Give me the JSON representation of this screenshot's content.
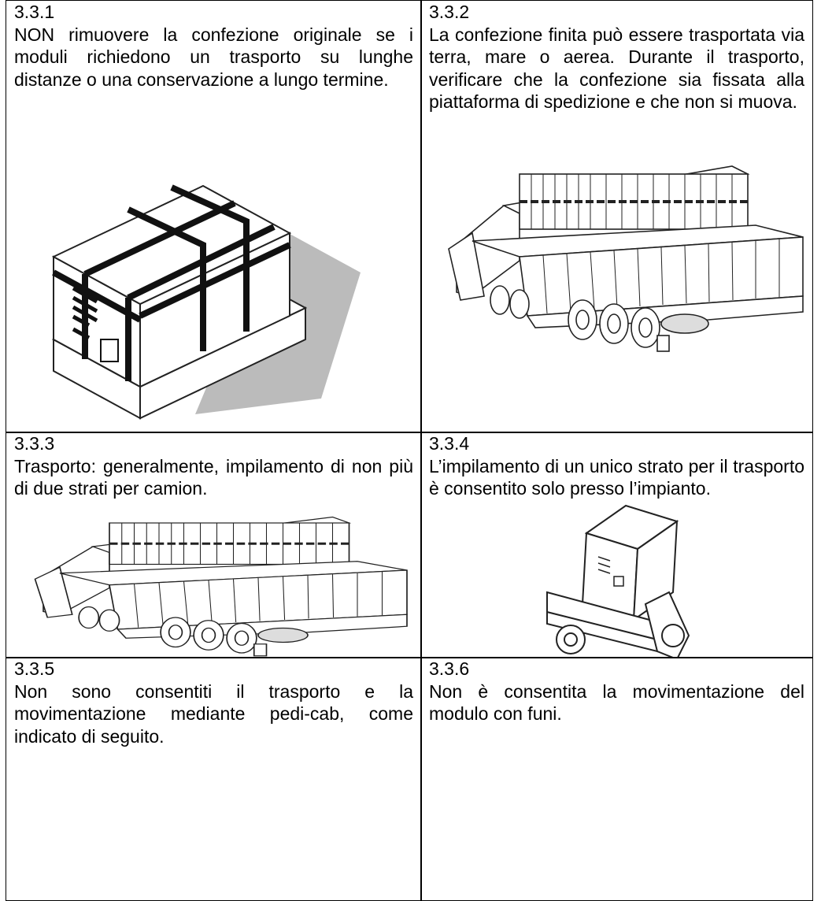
{
  "cells": [
    {
      "number": "3.3.1",
      "text": "NON rimuovere la confezione originale se i moduli richiedono un trasporto su lunghe distanze o una conservazione a lungo termine."
    },
    {
      "number": "3.3.2",
      "text": "La confezione finita può essere trasportata via terra, mare o aerea. Durante il trasporto, verificare che la confezione sia fissata alla piattaforma di spedizione e che non si muova."
    },
    {
      "number": "3.3.3",
      "text": "Trasporto: generalmente, impilamento di non più di due strati per camion."
    },
    {
      "number": "3.3.4",
      "text": "L’impilamento di un unico strato per il trasporto è consentito solo presso l’impianto."
    },
    {
      "number": "3.3.5",
      "text": "Non sono consentiti il trasporto e la movimentazione mediante pedi-cab, come indicato di seguito."
    },
    {
      "number": "3.3.6",
      "text": "Non è consentita la movimentazione del modulo con funi."
    }
  ]
}
